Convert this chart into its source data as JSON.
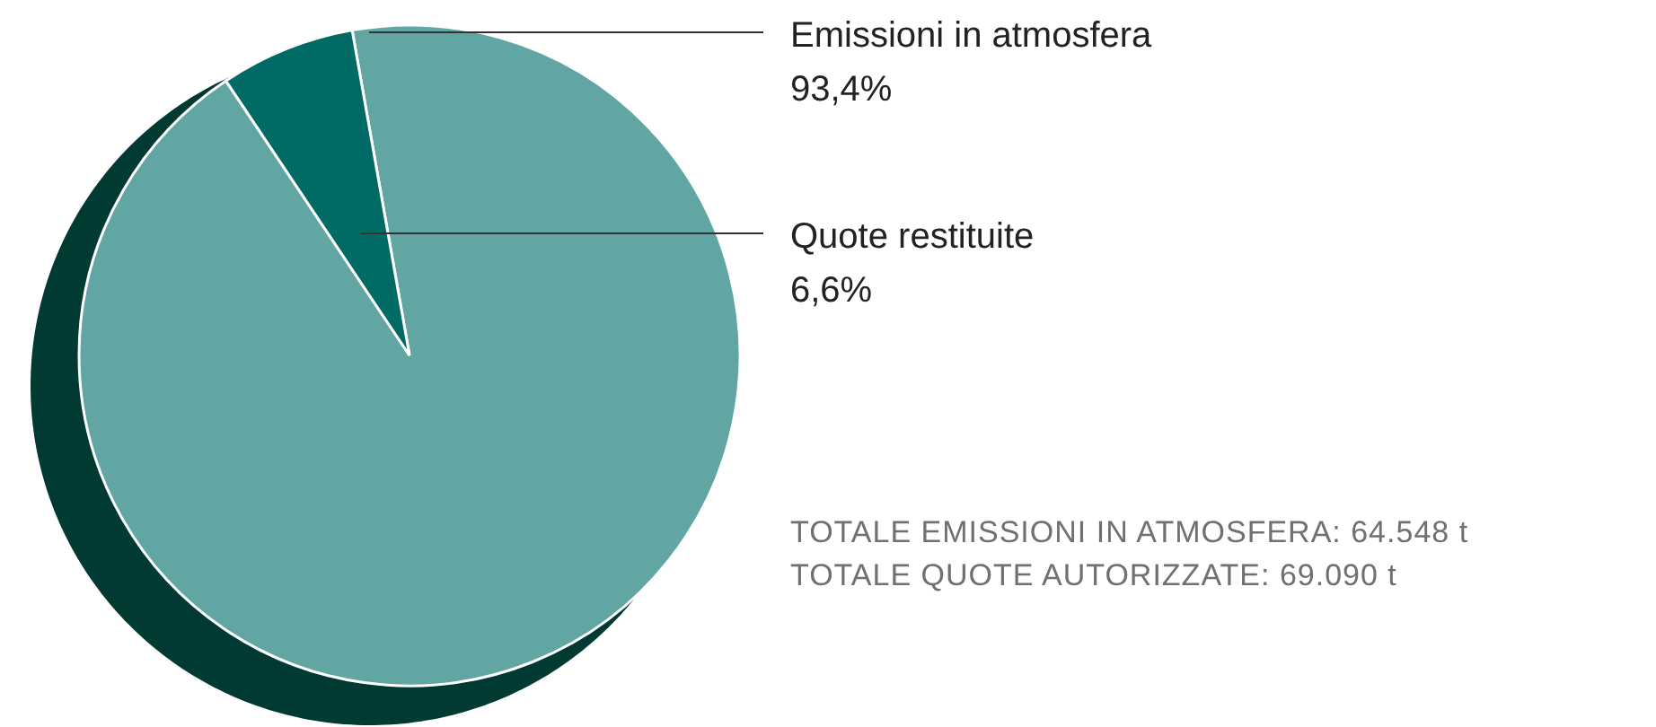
{
  "chart_data": {
    "type": "pie",
    "categories": [
      "Emissioni in atmosfera",
      "Quote restituite"
    ],
    "values": [
      93.4,
      6.6
    ],
    "colors": [
      "#62a6a3",
      "#006a64"
    ],
    "value_labels": [
      "93,4%",
      "6,6%"
    ],
    "annotations": [
      "TOTALE EMISSIONI IN ATMOSFERA: 64.548 t",
      "TOTALE QUOTE AUTORIZZATE: 69.090 t"
    ]
  }
}
